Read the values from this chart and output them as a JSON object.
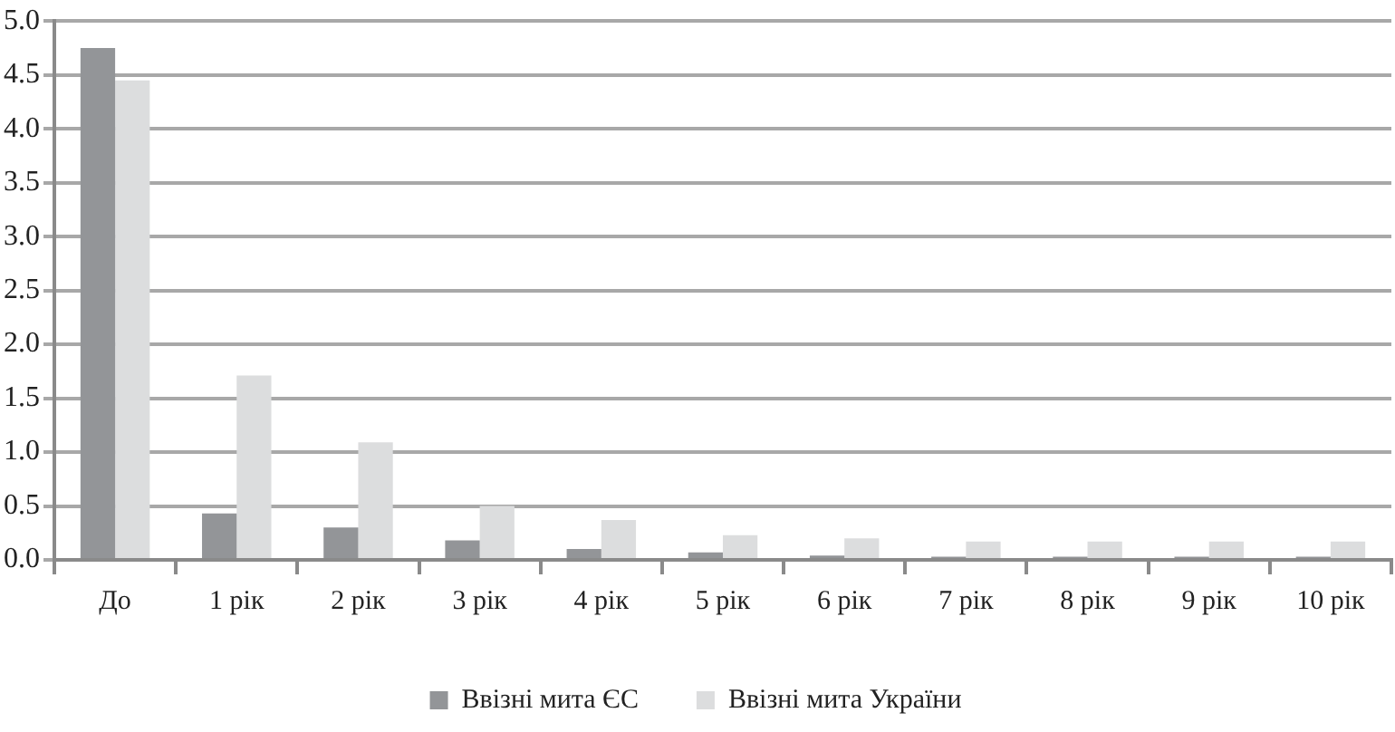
{
  "chart_data": {
    "type": "bar",
    "categories": [
      "До",
      "1 рік",
      "2 рік",
      "3 рік",
      "4 рік",
      "5 рік",
      "6 рік",
      "7 рік",
      "8 рік",
      "9 рік",
      "10 рік"
    ],
    "series": [
      {
        "name": "Ввізні мита ЄС",
        "color": "#939598",
        "values": [
          4.75,
          0.43,
          0.3,
          0.18,
          0.1,
          0.07,
          0.04,
          0.03,
          0.03,
          0.03,
          0.03
        ]
      },
      {
        "name": "Ввізні мита України",
        "color": "#dcddde",
        "values": [
          4.45,
          1.71,
          1.09,
          0.5,
          0.37,
          0.23,
          0.2,
          0.17,
          0.17,
          0.17,
          0.17
        ]
      }
    ],
    "ylim": [
      0,
      5
    ],
    "yticks": [
      {
        "value": 0,
        "label": "0.0"
      },
      {
        "value": 0.5,
        "label": "0.5"
      },
      {
        "value": 1,
        "label": "1.0"
      },
      {
        "value": 1.5,
        "label": "1.5"
      },
      {
        "value": 2,
        "label": "2.0"
      },
      {
        "value": 2.5,
        "label": "2.5"
      },
      {
        "value": 3,
        "label": "3.0"
      },
      {
        "value": 3.5,
        "label": "3.5"
      },
      {
        "value": 4,
        "label": "4.0"
      },
      {
        "value": 4.5,
        "label": "4.5"
      },
      {
        "value": 5,
        "label": "5.0"
      }
    ],
    "grid": "y",
    "legend": "bottom"
  }
}
